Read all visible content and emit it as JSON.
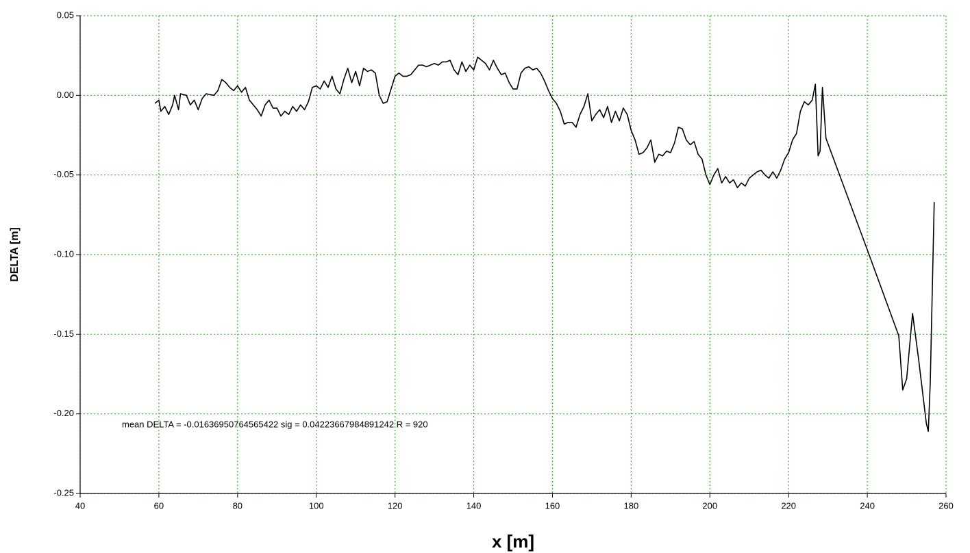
{
  "chart_data": {
    "type": "line",
    "xlabel": "x [m]",
    "ylabel": "DELTA [m]",
    "annotation": "mean DELTA =  -0.01636950764565422 sig =  0.04223667984891242   R =  920",
    "xlim": [
      40,
      260
    ],
    "xticks": [
      40,
      60,
      80,
      100,
      120,
      140,
      160,
      180,
      200,
      220,
      240,
      260
    ],
    "ylim": [
      -0.25,
      0.05
    ],
    "yticks": [
      0.05,
      {
        "value": 0,
        "label": "0.00"
      },
      -0.05,
      {
        "value": -0.1,
        "label": "-0.10"
      },
      -0.15,
      {
        "value": -0.2,
        "label": "-0.20"
      },
      -0.25
    ],
    "grid": true,
    "color": "#000000",
    "x": [
      59,
      60,
      60.5,
      61.5,
      62.5,
      63.5,
      64,
      65,
      65.5,
      67,
      68,
      69,
      70,
      71,
      72,
      74,
      75,
      76,
      77,
      78,
      79,
      80,
      81,
      82,
      83,
      84,
      85,
      86,
      87,
      88,
      89,
      90,
      91,
      92,
      93,
      94,
      95,
      96,
      97,
      98,
      99,
      100,
      101,
      102,
      103,
      104,
      105,
      106,
      107,
      108,
      109,
      110,
      111,
      112,
      113,
      114,
      115,
      116,
      117,
      118,
      119,
      120,
      121,
      122,
      123,
      124,
      125,
      126,
      127,
      128,
      129,
      130,
      131,
      132,
      133,
      134,
      135,
      136,
      137,
      138,
      139,
      140,
      141,
      142,
      143,
      144,
      145,
      146,
      147,
      148,
      149,
      150,
      151,
      152,
      153,
      154,
      155,
      156,
      157,
      158,
      159,
      160,
      161,
      162,
      163,
      164,
      165,
      166,
      167,
      168,
      169,
      170,
      171,
      172,
      173,
      174,
      175,
      176,
      177,
      178,
      179,
      180,
      181,
      182,
      183,
      184,
      185,
      186,
      187,
      188,
      189,
      190,
      191,
      192,
      193,
      194,
      195,
      196,
      197,
      198,
      199,
      200,
      201,
      202,
      203,
      204,
      205,
      206,
      207,
      208,
      209,
      210,
      211,
      212,
      213,
      214,
      215,
      216,
      217,
      218,
      219,
      220,
      221,
      222,
      223,
      224,
      225,
      226,
      226.8,
      227.5,
      228,
      228.6,
      229.5,
      240,
      248,
      249,
      250,
      251.5,
      253,
      255,
      255.5,
      256,
      257
    ],
    "values": [
      -0.005,
      -0.003,
      -0.01,
      -0.007,
      -0.012,
      -0.006,
      0,
      -0.009,
      0.001,
      0,
      -0.006,
      -0.003,
      -0.009,
      -0.002,
      0.001,
      0,
      0.003,
      0.01,
      0.008,
      0.005,
      0.003,
      0.006,
      0.002,
      0.005,
      -0.003,
      -0.006,
      -0.009,
      -0.013,
      -0.006,
      -0.003,
      -0.008,
      -0.008,
      -0.013,
      -0.01,
      -0.012,
      -0.007,
      -0.01,
      -0.006,
      -0.009,
      -0.004,
      0.005,
      0.006,
      0.004,
      0.009,
      0.005,
      0.012,
      0.004,
      0.001,
      0.01,
      0.017,
      0.008,
      0.015,
      0.006,
      0.017,
      0.015,
      0.016,
      0.014,
      0,
      -0.005,
      -0.004,
      0.004,
      0.012,
      0.014,
      0.012,
      0.012,
      0.013,
      0.016,
      0.019,
      0.019,
      0.018,
      0.019,
      0.02,
      0.019,
      0.021,
      0.021,
      0.022,
      0.016,
      0.013,
      0.021,
      0.015,
      0.019,
      0.016,
      0.024,
      0.022,
      0.02,
      0.016,
      0.022,
      0.017,
      0.013,
      0.014,
      0.008,
      0.004,
      0.004,
      0.014,
      0.017,
      0.018,
      0.016,
      0.017,
      0.014,
      0.009,
      0.003,
      -0.002,
      -0.005,
      -0.01,
      -0.018,
      -0.017,
      -0.017,
      -0.02,
      -0.012,
      -0.007,
      0.001,
      -0.016,
      -0.012,
      -0.009,
      -0.014,
      -0.007,
      -0.017,
      -0.01,
      -0.016,
      -0.008,
      -0.012,
      -0.022,
      -0.028,
      -0.037,
      -0.036,
      -0.033,
      -0.028,
      -0.042,
      -0.037,
      -0.038,
      -0.035,
      -0.036,
      -0.03,
      -0.02,
      -0.021,
      -0.028,
      -0.031,
      -0.029,
      -0.037,
      -0.04,
      -0.05,
      -0.056,
      -0.05,
      -0.046,
      -0.055,
      -0.051,
      -0.055,
      -0.053,
      -0.058,
      -0.055,
      -0.057,
      -0.052,
      -0.05,
      -0.048,
      -0.047,
      -0.05,
      -0.052,
      -0.048,
      -0.052,
      -0.047,
      -0.04,
      -0.036,
      -0.028,
      -0.024,
      -0.01,
      -0.004,
      -0.006,
      -0.003,
      0.007,
      -0.038,
      -0.035,
      0.005,
      -0.027,
      -0.097,
      -0.151,
      -0.185,
      -0.178,
      -0.137,
      -0.165,
      -0.206,
      -0.211,
      -0.18,
      -0.067
    ]
  }
}
